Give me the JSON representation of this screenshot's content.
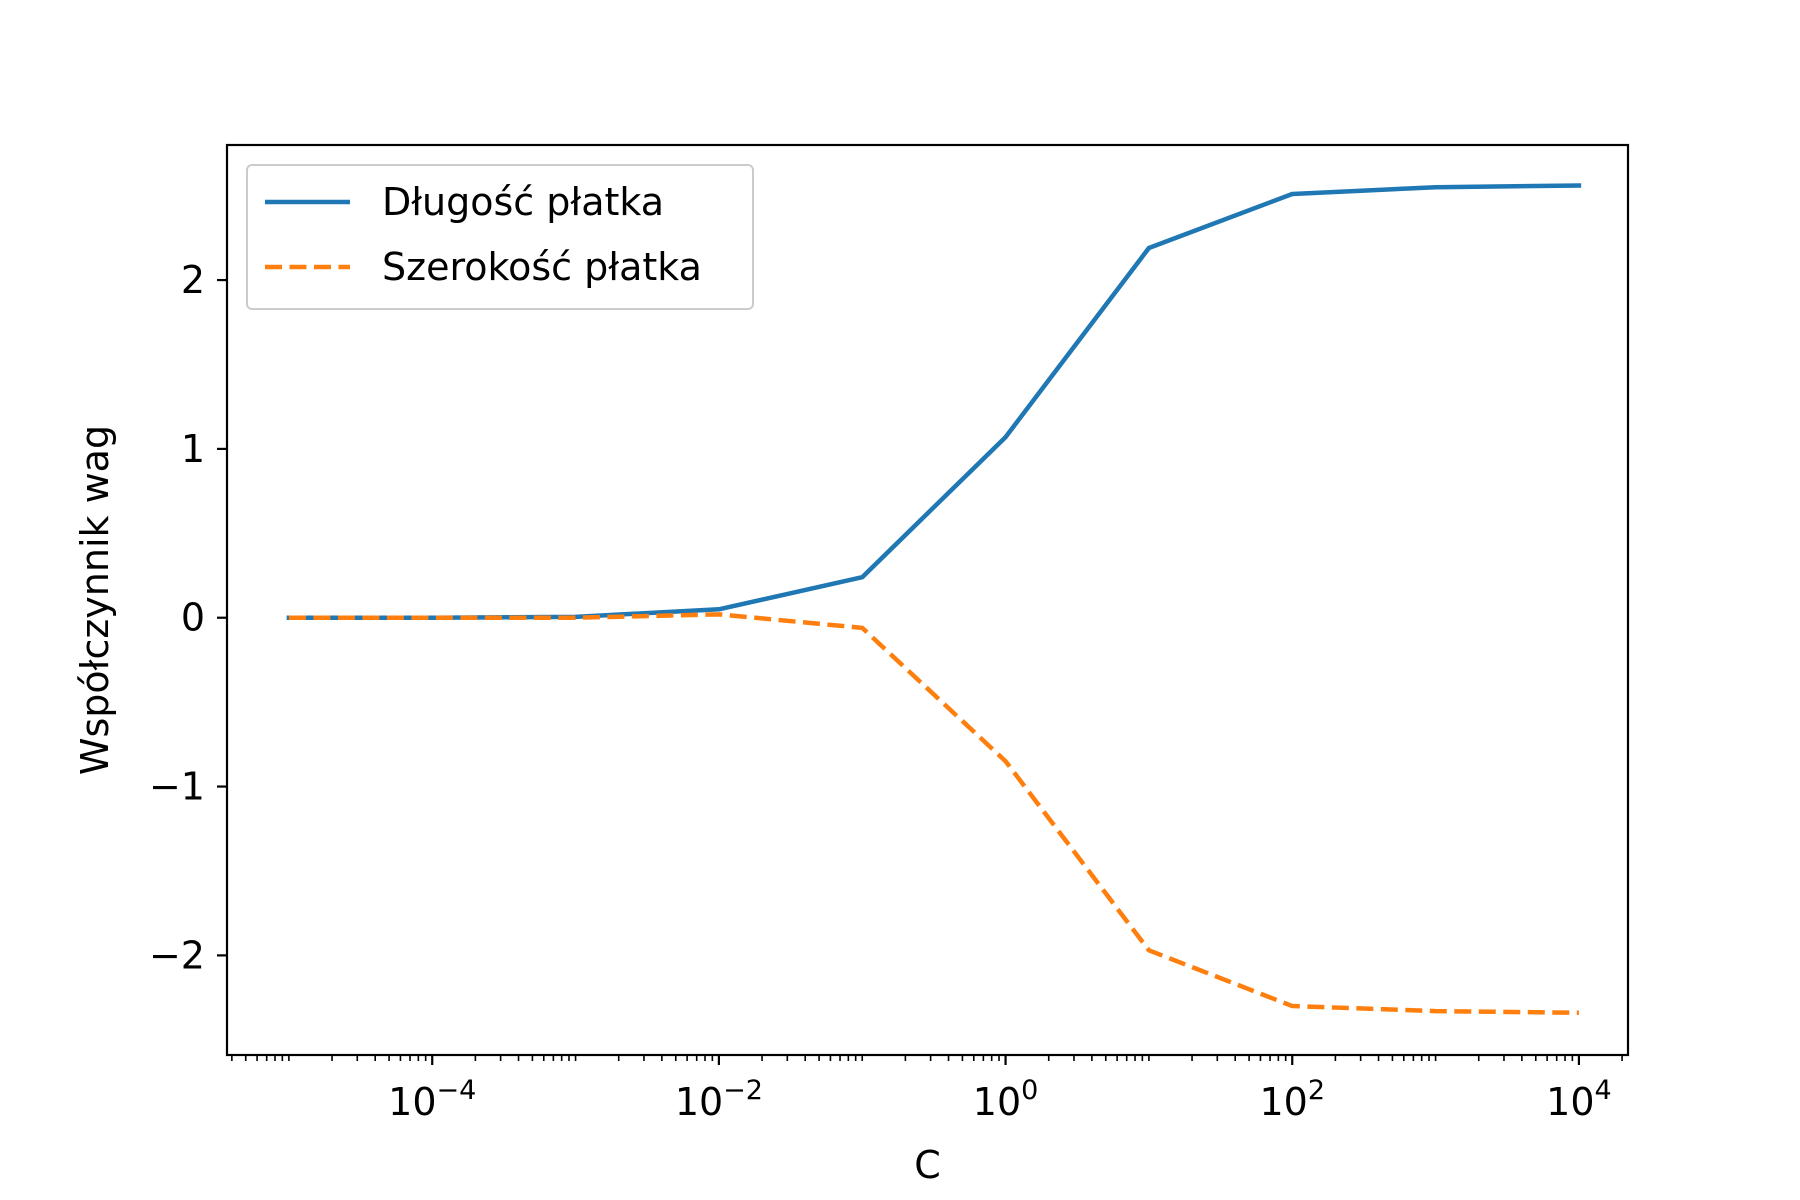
{
  "chart_data": {
    "type": "line",
    "x_scale": "log",
    "x": [
      1e-05,
      0.0001,
      0.001,
      0.01,
      0.1,
      1,
      10,
      100,
      1000,
      10000
    ],
    "series": [
      {
        "name": "Długość płatka",
        "color": "#1f77b4",
        "style": "solid",
        "values": [
          0.0,
          0.0,
          0.005,
          0.05,
          0.24,
          1.07,
          2.19,
          2.51,
          2.55,
          2.56
        ]
      },
      {
        "name": "Szerokość płatka",
        "color": "#ff7f0e",
        "style": "dashed",
        "values": [
          0.0,
          0.0,
          0.0,
          0.02,
          -0.06,
          -0.85,
          -1.97,
          -2.3,
          -2.33,
          -2.34
        ]
      }
    ],
    "xlabel": "C",
    "ylabel": "Współczynnik wag",
    "xlim": [
      3.7e-06,
      22000
    ],
    "ylim": [
      -2.59,
      2.8
    ],
    "x_ticks": [
      {
        "value": 0.0001,
        "base": "10",
        "exp": "−4"
      },
      {
        "value": 0.01,
        "base": "10",
        "exp": "−2"
      },
      {
        "value": 1,
        "base": "10",
        "exp": "0"
      },
      {
        "value": 100,
        "base": "10",
        "exp": "2"
      },
      {
        "value": 10000,
        "base": "10",
        "exp": "4"
      }
    ],
    "y_ticks": [
      {
        "value": 2,
        "label": "2"
      },
      {
        "value": 1,
        "label": "1"
      },
      {
        "value": 0,
        "label": "0"
      },
      {
        "value": -1,
        "label": "−1"
      },
      {
        "value": -2,
        "label": "−2"
      }
    ],
    "legend_position": "top-left",
    "grid": false
  }
}
